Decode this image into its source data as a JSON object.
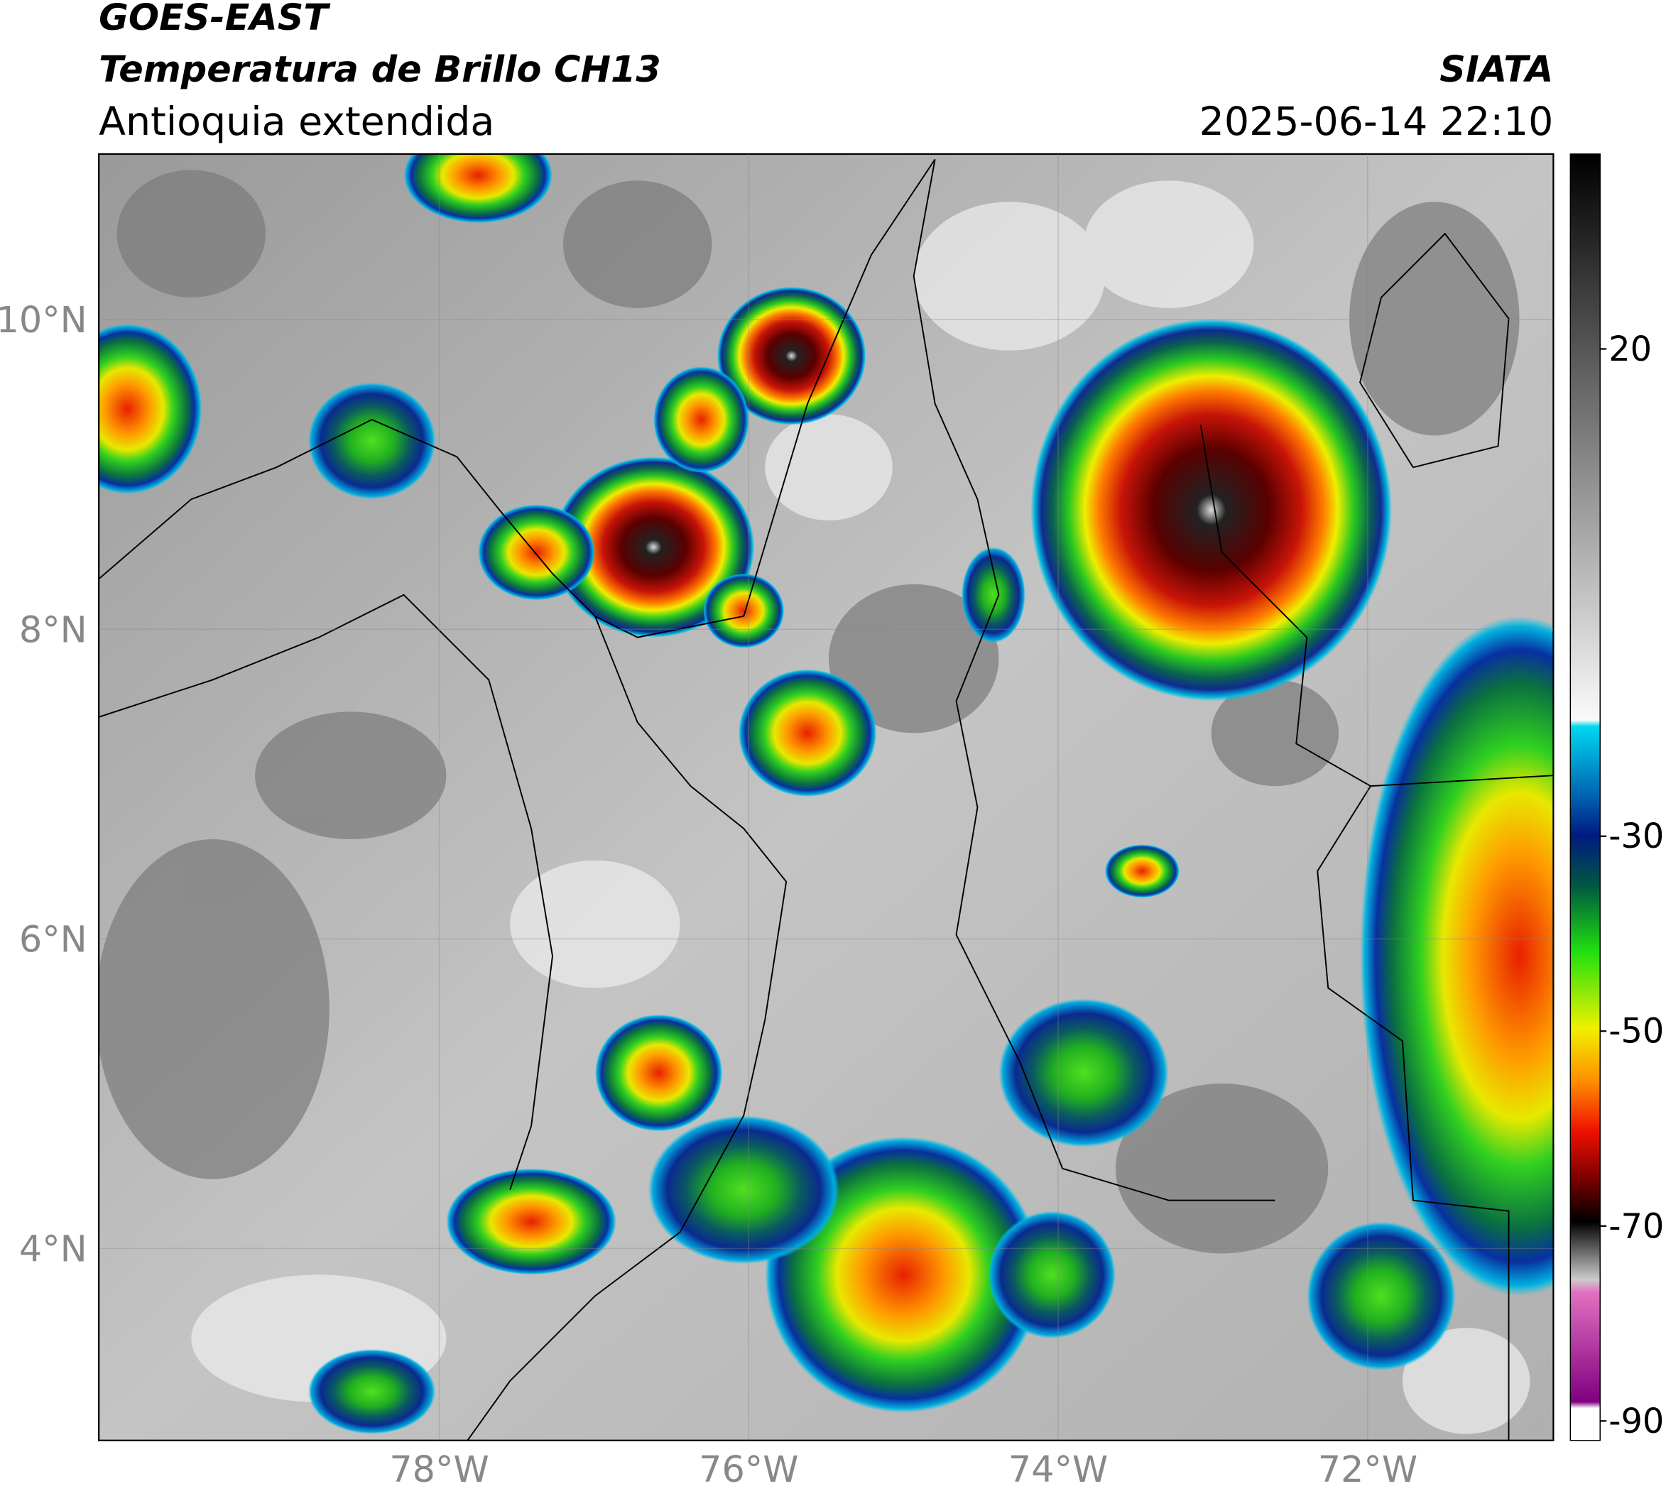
{
  "header": {
    "satellite": "GOES-EAST",
    "product": "Temperatura de Brillo CH13",
    "region": "Antioquia extendida",
    "source": "SIATA",
    "datetime": "2025-06-14 22:10"
  },
  "map": {
    "xlim": [
      -80.2,
      -70.8
    ],
    "ylim": [
      2.76,
      11.07
    ],
    "xticks": [
      {
        "value": -78,
        "label": "78°W"
      },
      {
        "value": -76,
        "label": "76°W"
      },
      {
        "value": -74,
        "label": "74°W"
      },
      {
        "value": -72,
        "label": "72°W"
      }
    ],
    "yticks": [
      {
        "value": 10,
        "label": "10°N"
      },
      {
        "value": 8,
        "label": "8°N"
      },
      {
        "value": 6,
        "label": "6°N"
      },
      {
        "value": 4,
        "label": "4°N"
      }
    ],
    "grid": true
  },
  "colorbar": {
    "lim": [
      -92,
      40
    ],
    "ticks": [
      20,
      -30,
      -50,
      -70,
      -90
    ]
  }
}
